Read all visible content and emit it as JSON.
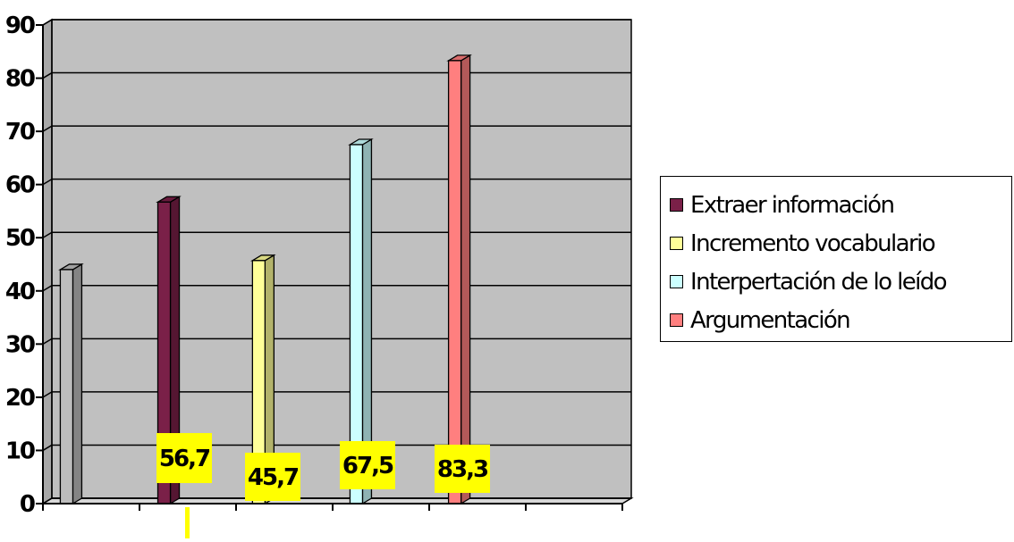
{
  "chart_data": {
    "type": "bar",
    "title": "",
    "xlabel": "",
    "ylabel": "",
    "ylim": [
      0,
      90
    ],
    "yticks": [
      0,
      10,
      20,
      30,
      40,
      50,
      60,
      70,
      80,
      90
    ],
    "grid": true,
    "legend_position": "right",
    "categories": [
      "",
      "Extraer información",
      "Incremento vocabulario",
      "Interpertación de lo leído",
      "Argumentación",
      ""
    ],
    "bars": [
      {
        "category_index": 0,
        "value": 44,
        "color": "#bdbdbd",
        "label": ""
      },
      {
        "category_index": 1,
        "value": 56.7,
        "color": "#7a2048",
        "label": "56,7"
      },
      {
        "category_index": 2,
        "value": 45.7,
        "color": "#ffff99",
        "label": "45,7"
      },
      {
        "category_index": 3,
        "value": 67.5,
        "color": "#ccffff",
        "label": "67,5"
      },
      {
        "category_index": 4,
        "value": 83.3,
        "color": "#ff7f7f",
        "label": "83,3"
      }
    ],
    "series": [
      {
        "name": "Extraer información",
        "color": "#7a2048"
      },
      {
        "name": "Incremento vocabulario",
        "color": "#ffff99"
      },
      {
        "name": "Interpertación de lo leído",
        "color": "#ccffff"
      },
      {
        "name": "Argumentación",
        "color": "#ff7f7f"
      }
    ],
    "colors": {
      "plot_background": "#c0c0c0",
      "label_background": "#ffff00",
      "gridline": "#000000"
    }
  }
}
